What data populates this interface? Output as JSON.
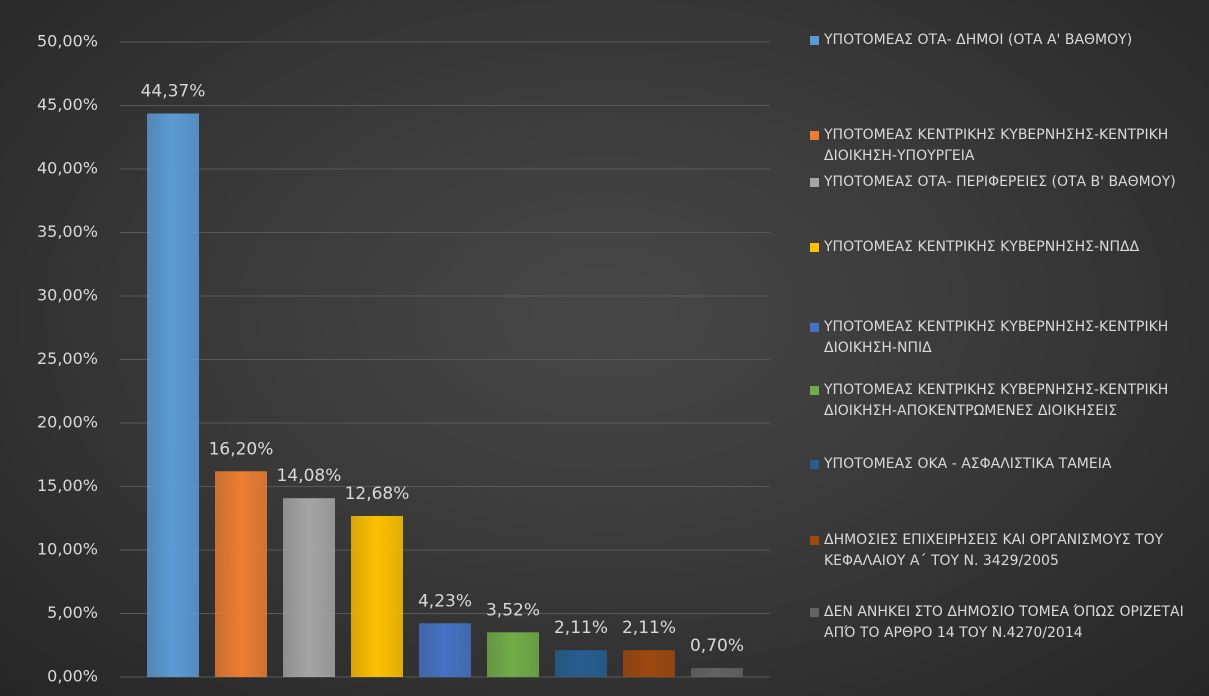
{
  "chart_data": {
    "type": "bar",
    "ylim": [
      0,
      50
    ],
    "yticks": [
      {
        "value": 0,
        "label": "0,00%"
      },
      {
        "value": 5,
        "label": "5,00%"
      },
      {
        "value": 10,
        "label": "10,00%"
      },
      {
        "value": 15,
        "label": "15,00%"
      },
      {
        "value": 20,
        "label": "20,00%"
      },
      {
        "value": 25,
        "label": "25,00%"
      },
      {
        "value": 30,
        "label": "30,00%"
      },
      {
        "value": 35,
        "label": "35,00%"
      },
      {
        "value": 40,
        "label": "40,00%"
      },
      {
        "value": 45,
        "label": "45,00%"
      },
      {
        "value": 50,
        "label": "50,00%"
      }
    ],
    "grid": true,
    "legend": "right",
    "series": [
      {
        "name": "ΥΠΟΤΟΜΕΑΣ ΟΤΑ- ΔΗΜΟΙ (ΟΤΑ Α' ΒΑΘΜΟΥ)",
        "color": "#5b9bd5",
        "values": [
          44.37
        ],
        "value_labels": [
          "44,37%"
        ]
      },
      {
        "name": "ΥΠΟΤΟΜΕΑΣ ΚΕΝΤΡΙΚΗΣ ΚΥΒΕΡΝΗΣΗΣ-ΚΕΝΤΡΙΚΗ ΔΙΟΙΚΗΣΗ-ΥΠΟΥΡΓΕΙΑ",
        "color": "#ed7d31",
        "values": [
          16.2
        ],
        "value_labels": [
          "16,20%"
        ]
      },
      {
        "name": "ΥΠΟΤΟΜΕΑΣ ΟΤΑ- ΠΕΡΙΦΕΡΕΙΕΣ (ΟΤΑ Β' ΒΑΘΜΟΥ)",
        "color": "#a5a5a5",
        "values": [
          14.08
        ],
        "value_labels": [
          "14,08%"
        ]
      },
      {
        "name": "ΥΠΟΤΟΜΕΑΣ ΚΕΝΤΡΙΚΗΣ ΚΥΒΕΡΝΗΣΗΣ-ΝΠΔΔ",
        "color": "#ffc000",
        "values": [
          12.68
        ],
        "value_labels": [
          "12,68%"
        ]
      },
      {
        "name": "ΥΠΟΤΟΜΕΑΣ ΚΕΝΤΡΙΚΗΣ ΚΥΒΕΡΝΗΣΗΣ-ΚΕΝΤΡΙΚΗ ΔΙΟΙΚΗΣΗ-ΝΠΙΔ",
        "color": "#4472c4",
        "values": [
          4.23
        ],
        "value_labels": [
          "4,23%"
        ]
      },
      {
        "name": "ΥΠΟΤΟΜΕΑΣ ΚΕΝΤΡΙΚΗΣ ΚΥΒΕΡΝΗΣΗΣ-ΚΕΝΤΡΙΚΗ ΔΙΟΙΚΗΣΗ-ΑΠΟΚΕΝΤΡΩΜΕΝΕΣ ΔΙΟΙΚΗΣΕΙΣ",
        "color": "#70ad47",
        "values": [
          3.52
        ],
        "value_labels": [
          "3,52%"
        ]
      },
      {
        "name": "ΥΠΟΤΟΜΕΑΣ ΟΚΑ - ΑΣΦΑΛΙΣΤΙΚΑ ΤΑΜΕΙΑ",
        "color": "#255e91",
        "values": [
          2.11
        ],
        "value_labels": [
          "2,11%"
        ]
      },
      {
        "name": "ΔΗΜΟΣΙΕΣ ΕΠΙΧΕΙΡΗΣΕΙΣ ΚΑΙ ΟΡΓΑΝΙΣΜΟΥΣ ΤΟΥ ΚΕΦΑΛΑΙΟΥ Α΄ ΤΟΥ Ν. 3429/2005",
        "color": "#9e480e",
        "values": [
          2.11
        ],
        "value_labels": [
          "2,11%"
        ]
      },
      {
        "name": "ΔΕΝ ΑΝΗΚΕΙ ΣΤΟ ΔΗΜΟΣΙΟ ΤΟΜΕΑ ΌΠΩΣ ΟΡΙΖΕΤΑΙ ΑΠΌ ΤΟ ΑΡΘΡΟ 14 ΤΟΥ Ν.4270/2014",
        "color": "#636363",
        "values": [
          0.7
        ],
        "value_labels": [
          "0,70%"
        ]
      }
    ]
  }
}
